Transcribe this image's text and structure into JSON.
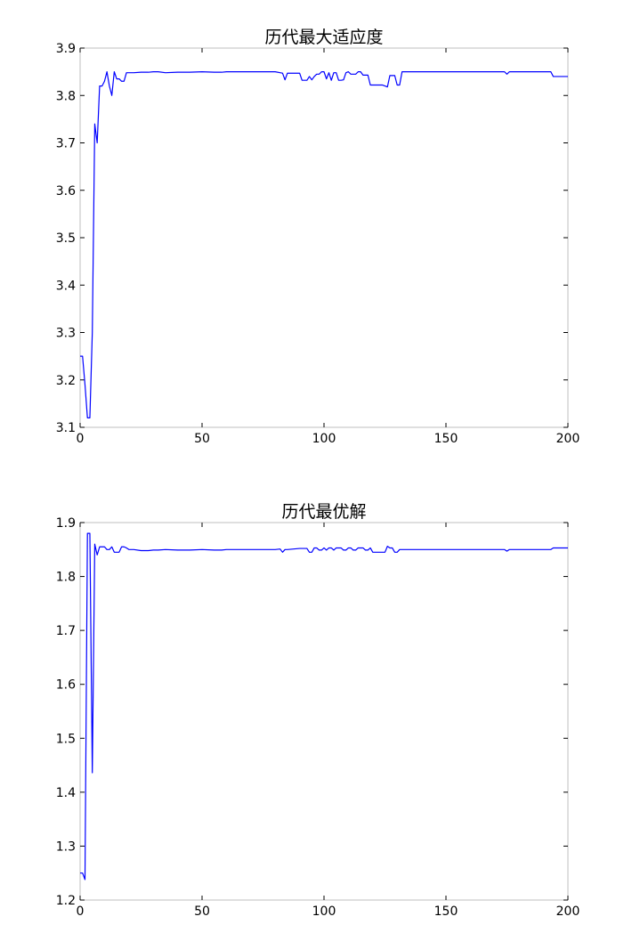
{
  "figure": {
    "background": "#ffffff",
    "axis_color": "#bfbfbf",
    "line_color": "#0000ff"
  },
  "chart_data": [
    {
      "type": "line",
      "title": "历代最大适应度",
      "xlabel": "",
      "ylabel": "",
      "xlim": [
        0,
        200
      ],
      "ylim": [
        3.1,
        3.9
      ],
      "xticks": [
        0,
        50,
        100,
        150,
        200
      ],
      "yticks": [
        3.1,
        3.2,
        3.3,
        3.4,
        3.5,
        3.6,
        3.7,
        3.8,
        3.9
      ],
      "xtick_labels": [
        "0",
        "50",
        "100",
        "150",
        "200"
      ],
      "ytick_labels": [
        "3.1",
        "3.2",
        "3.3",
        "3.4",
        "3.5",
        "3.6",
        "3.7",
        "3.8",
        "3.9"
      ],
      "grid": false,
      "series": [
        {
          "color": "#0000ff",
          "x": [
            0,
            1,
            2,
            3,
            4,
            5,
            6,
            7,
            8,
            9,
            10,
            11,
            12,
            13,
            14,
            15,
            16,
            17,
            18,
            19,
            20,
            22,
            25,
            28,
            30,
            32,
            35,
            40,
            45,
            50,
            55,
            58,
            60,
            65,
            70,
            75,
            80,
            82,
            83,
            84,
            85,
            90,
            91,
            92,
            93,
            94,
            95,
            96,
            97,
            98,
            99,
            100,
            101,
            102,
            103,
            104,
            105,
            106,
            107,
            108,
            109,
            110,
            111,
            112,
            113,
            114,
            115,
            116,
            117,
            118,
            119,
            120,
            121,
            122,
            123,
            124,
            125,
            126,
            127,
            128,
            129,
            130,
            131,
            132,
            133,
            135,
            140,
            150,
            160,
            170,
            174,
            175,
            176,
            180,
            190,
            193,
            194,
            195,
            200
          ],
          "y": [
            3.25,
            3.25,
            3.19,
            3.12,
            3.12,
            3.3,
            3.74,
            3.7,
            3.82,
            3.82,
            3.83,
            3.85,
            3.82,
            3.8,
            3.85,
            3.835,
            3.835,
            3.83,
            3.83,
            3.848,
            3.848,
            3.848,
            3.849,
            3.849,
            3.85,
            3.85,
            3.848,
            3.849,
            3.849,
            3.85,
            3.849,
            3.849,
            3.85,
            3.85,
            3.85,
            3.85,
            3.85,
            3.848,
            3.847,
            3.833,
            3.847,
            3.847,
            3.832,
            3.832,
            3.832,
            3.84,
            3.833,
            3.84,
            3.845,
            3.845,
            3.85,
            3.85,
            3.835,
            3.848,
            3.832,
            3.848,
            3.848,
            3.832,
            3.832,
            3.833,
            3.848,
            3.85,
            3.845,
            3.845,
            3.845,
            3.85,
            3.85,
            3.843,
            3.843,
            3.843,
            3.822,
            3.822,
            3.822,
            3.822,
            3.822,
            3.822,
            3.82,
            3.818,
            3.842,
            3.842,
            3.842,
            3.822,
            3.822,
            3.85,
            3.85,
            3.85,
            3.85,
            3.85,
            3.85,
            3.85,
            3.85,
            3.845,
            3.85,
            3.85,
            3.85,
            3.85,
            3.84,
            3.84,
            3.84
          ]
        }
      ]
    },
    {
      "type": "line",
      "title": "历代最优解",
      "xlabel": "",
      "ylabel": "",
      "xlim": [
        0,
        200
      ],
      "ylim": [
        1.2,
        1.9
      ],
      "xticks": [
        0,
        50,
        100,
        150,
        200
      ],
      "yticks": [
        1.2,
        1.3,
        1.4,
        1.5,
        1.6,
        1.7,
        1.8,
        1.9
      ],
      "xtick_labels": [
        "0",
        "50",
        "100",
        "150",
        "200"
      ],
      "ytick_labels": [
        "1.2",
        "1.3",
        "1.4",
        "1.5",
        "1.6",
        "1.7",
        "1.8",
        "1.9"
      ],
      "grid": false,
      "series": [
        {
          "color": "#0000ff",
          "x": [
            0,
            1,
            2,
            3,
            4,
            5,
            6,
            7,
            8,
            9,
            10,
            11,
            12,
            13,
            14,
            15,
            16,
            17,
            18,
            19,
            20,
            22,
            25,
            28,
            30,
            32,
            35,
            40,
            45,
            50,
            55,
            58,
            60,
            65,
            70,
            75,
            80,
            82,
            83,
            84,
            85,
            90,
            92,
            93,
            94,
            95,
            96,
            97,
            98,
            99,
            100,
            101,
            102,
            103,
            104,
            105,
            106,
            107,
            108,
            109,
            110,
            111,
            112,
            113,
            114,
            115,
            116,
            117,
            118,
            119,
            120,
            125,
            126,
            127,
            128,
            129,
            130,
            131,
            132,
            133,
            135,
            140,
            150,
            160,
            170,
            174,
            175,
            176,
            180,
            190,
            193,
            194,
            195,
            200
          ],
          "y": [
            1.25,
            1.25,
            1.238,
            1.88,
            1.88,
            1.436,
            1.86,
            1.84,
            1.855,
            1.855,
            1.855,
            1.85,
            1.85,
            1.855,
            1.845,
            1.845,
            1.845,
            1.855,
            1.855,
            1.853,
            1.85,
            1.85,
            1.848,
            1.848,
            1.849,
            1.849,
            1.85,
            1.849,
            1.849,
            1.85,
            1.849,
            1.849,
            1.85,
            1.85,
            1.85,
            1.85,
            1.85,
            1.851,
            1.845,
            1.85,
            1.85,
            1.852,
            1.852,
            1.852,
            1.845,
            1.845,
            1.853,
            1.853,
            1.849,
            1.849,
            1.853,
            1.849,
            1.853,
            1.853,
            1.849,
            1.853,
            1.853,
            1.853,
            1.849,
            1.849,
            1.853,
            1.853,
            1.849,
            1.849,
            1.853,
            1.853,
            1.853,
            1.849,
            1.849,
            1.853,
            1.845,
            1.845,
            1.856,
            1.853,
            1.853,
            1.845,
            1.845,
            1.85,
            1.85,
            1.85,
            1.85,
            1.85,
            1.85,
            1.85,
            1.85,
            1.85,
            1.847,
            1.85,
            1.85,
            1.85,
            1.85,
            1.853,
            1.853,
            1.853
          ]
        }
      ]
    }
  ]
}
